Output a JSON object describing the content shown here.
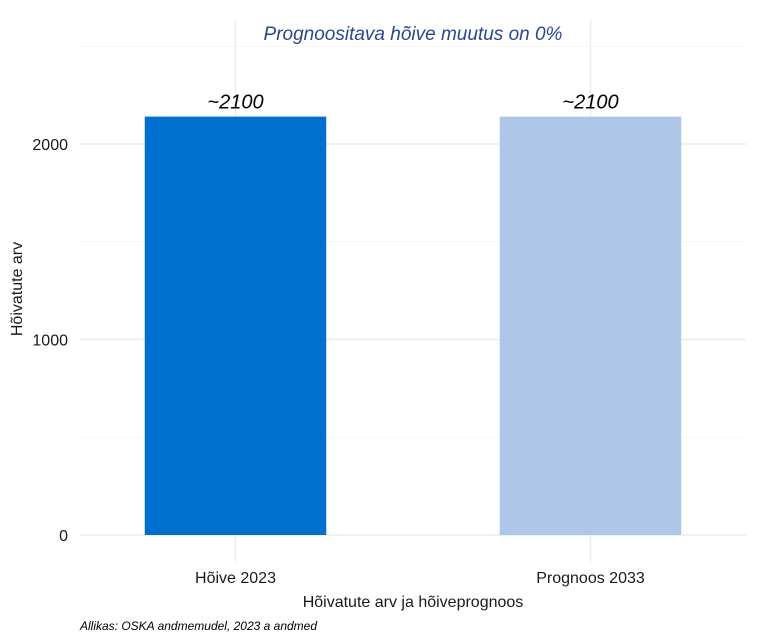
{
  "chart_data": {
    "type": "bar",
    "title": "Prognoositava hõive muutus on 0%",
    "xlabel": "Hõivatute arv ja hõiveprognoos",
    "ylabel": "Hõivatute arv",
    "categories": [
      "Hõive 2023",
      "Prognoos 2033"
    ],
    "values": [
      2140,
      2140
    ],
    "data_labels": [
      "~2100",
      "~2100"
    ],
    "bar_colors": [
      "#0070cf",
      "#aec7e8"
    ],
    "ylim": [
      0,
      2500
    ],
    "y_ticks": [
      0,
      1000,
      2000
    ],
    "y_tick_labels": [
      "0",
      "1000",
      "2000"
    ],
    "grid": true,
    "legend": "none"
  },
  "caption": "Allikas: OSKA andmemudel, 2023 a andmed",
  "colors": {
    "title": "#2b4593",
    "grid": "#ebebeb"
  }
}
